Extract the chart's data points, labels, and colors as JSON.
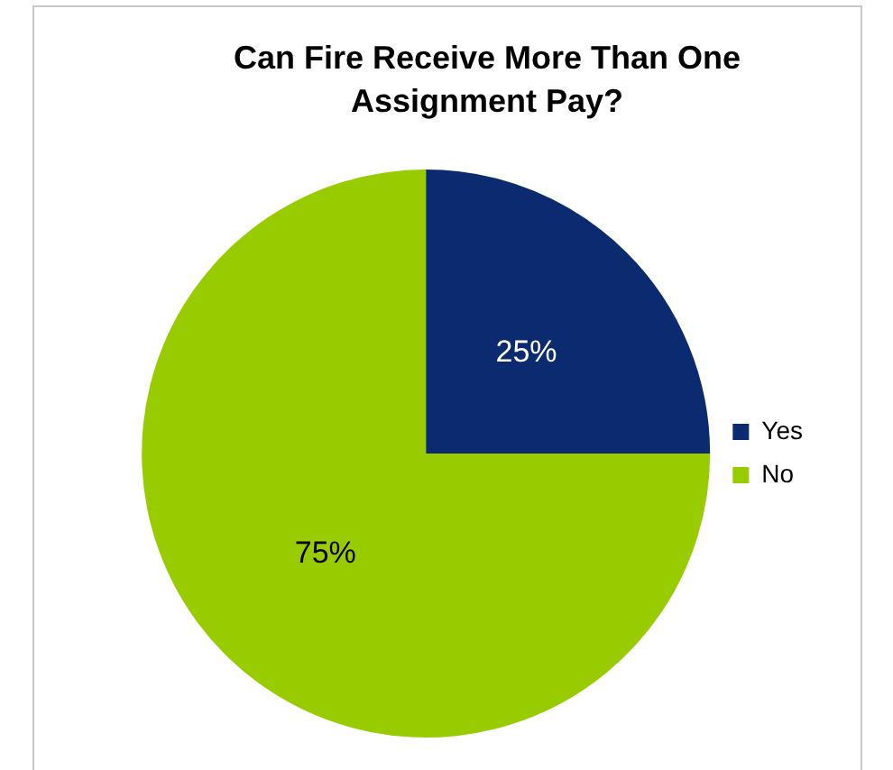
{
  "chart_data": {
    "type": "pie",
    "title": "Can Fire Receive More Than One Assignment Pay?",
    "categories": [
      "Yes",
      "No"
    ],
    "values": [
      25,
      75
    ],
    "colors": [
      "#0b2a6f",
      "#99cc00"
    ],
    "value_labels": [
      "25%",
      "75%"
    ],
    "legend": "right"
  }
}
